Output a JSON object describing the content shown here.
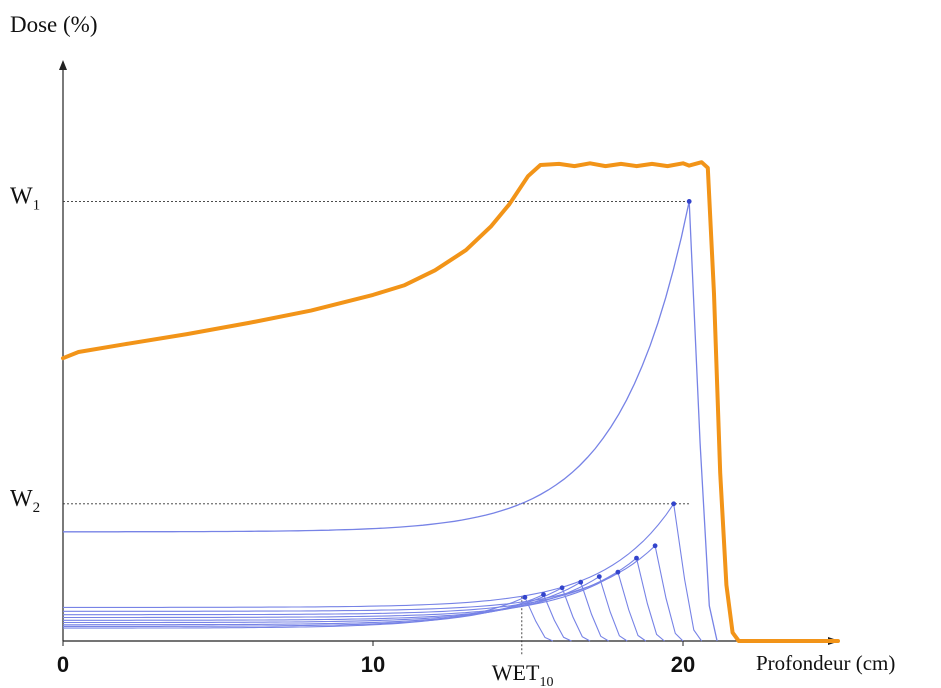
{
  "chart_data": {
    "type": "line",
    "ylabel": "Dose (%)",
    "xlabel": "Profondeur (cm)",
    "xlim": [
      0,
      25
    ],
    "ylim": [
      0,
      100
    ],
    "x_ticks": [
      0,
      10,
      20
    ],
    "y_levels": [
      {
        "label_main": "W",
        "label_sub": "1",
        "value": 78.5
      },
      {
        "label_main": "W",
        "label_sub": "2",
        "value": 24.5
      }
    ],
    "x_marker": {
      "label_main": "WET",
      "label_sub": "10",
      "value": 14.8
    },
    "colors": {
      "sobp": "#f29418",
      "pristine": "#7783e6",
      "dots": "#3344cc",
      "axis": "#222222",
      "guides": "#333333"
    },
    "sobp_curve": {
      "points": [
        [
          0,
          50.5
        ],
        [
          0.5,
          51.6
        ],
        [
          2,
          53.0
        ],
        [
          4,
          54.8
        ],
        [
          6,
          56.8
        ],
        [
          8,
          59.0
        ],
        [
          10,
          61.8
        ],
        [
          11,
          63.5
        ],
        [
          12,
          66.2
        ],
        [
          13,
          69.8
        ],
        [
          13.8,
          74.0
        ],
        [
          14.4,
          78.0
        ],
        [
          15,
          83.0
        ],
        [
          15.4,
          85.0
        ],
        [
          16,
          85.2
        ],
        [
          16.5,
          84.8
        ],
        [
          17,
          85.3
        ],
        [
          17.5,
          84.8
        ],
        [
          18,
          85.2
        ],
        [
          18.5,
          84.8
        ],
        [
          19,
          85.2
        ],
        [
          19.5,
          84.8
        ],
        [
          20,
          85.3
        ],
        [
          20.2,
          84.9
        ],
        [
          20.6,
          85.5
        ],
        [
          20.8,
          84.5
        ],
        [
          21.0,
          62.0
        ],
        [
          21.2,
          30.0
        ],
        [
          21.4,
          10.0
        ],
        [
          21.6,
          1.5
        ],
        [
          21.8,
          0
        ],
        [
          25,
          0
        ]
      ]
    },
    "pristine_peaks": [
      {
        "baseline": 19.5,
        "peak_depth": 20.2,
        "peak_dose": 78.5
      },
      {
        "baseline": 6.0,
        "peak_depth": 19.7,
        "peak_dose": 24.5
      },
      {
        "baseline": 5.3,
        "peak_depth": 19.1,
        "peak_dose": 17.0
      },
      {
        "baseline": 4.7,
        "peak_depth": 18.5,
        "peak_dose": 14.8
      },
      {
        "baseline": 4.2,
        "peak_depth": 17.9,
        "peak_dose": 12.3
      },
      {
        "baseline": 3.7,
        "peak_depth": 17.3,
        "peak_dose": 11.5
      },
      {
        "baseline": 3.3,
        "peak_depth": 16.7,
        "peak_dose": 10.5
      },
      {
        "baseline": 2.9,
        "peak_depth": 16.1,
        "peak_dose": 9.5
      },
      {
        "baseline": 2.6,
        "peak_depth": 15.5,
        "peak_dose": 8.3
      },
      {
        "baseline": 2.3,
        "peak_depth": 14.9,
        "peak_dose": 7.8
      }
    ]
  }
}
